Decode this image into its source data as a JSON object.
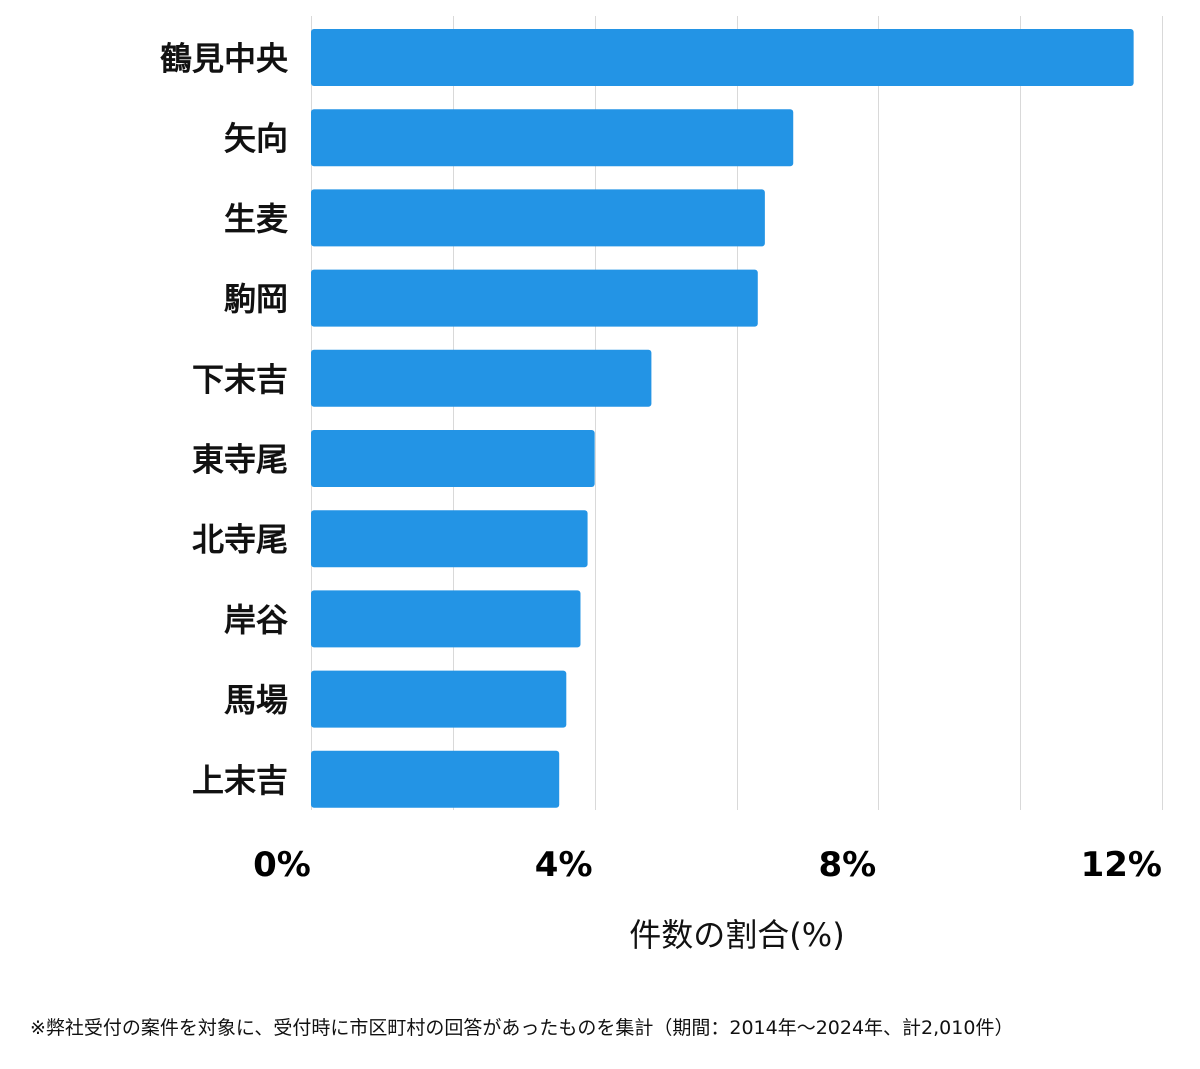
{
  "colors": {
    "bar": "#2394E5",
    "grid": "#D9D9D9",
    "text": "#111111"
  },
  "chart_data": {
    "type": "bar",
    "orientation": "horizontal",
    "categories": [
      "鶴見中央",
      "矢向",
      "生麦",
      "駒岡",
      "下末吉",
      "東寺尾",
      "北寺尾",
      "岸谷",
      "馬場",
      "上末吉"
    ],
    "values": [
      11.6,
      6.8,
      6.4,
      6.3,
      4.8,
      4.0,
      3.9,
      3.8,
      3.6,
      3.5
    ],
    "xlabel": "件数の割合(%)",
    "ylabel": "",
    "xlim": [
      0,
      12
    ],
    "xticks": [
      0,
      4,
      8,
      12
    ],
    "xtick_labels": [
      "0%",
      "4%",
      "8%",
      "12%"
    ],
    "grid": true,
    "legend": "none"
  },
  "footnote": "※弊社受付の案件を対象に、受付時に市区町村の回答があったものを集計（期間：2014年〜2024年、計2,010件）"
}
